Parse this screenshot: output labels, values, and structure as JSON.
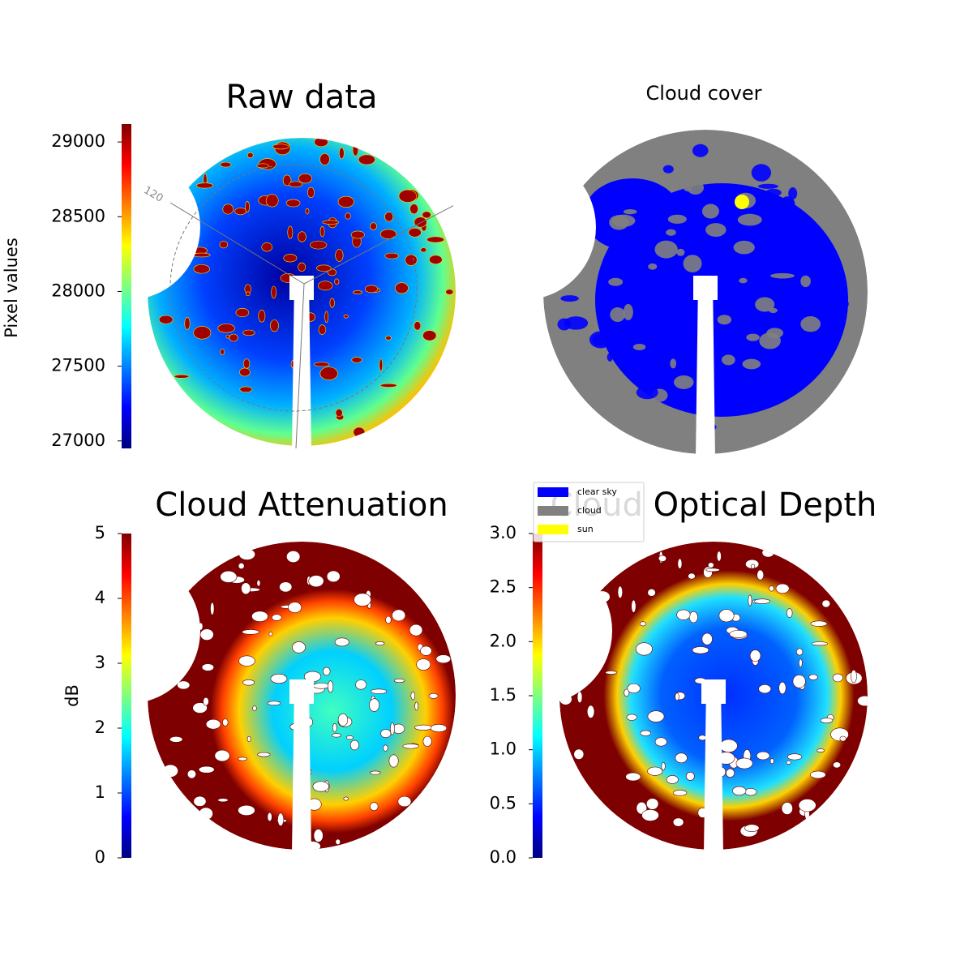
{
  "chart_data": [
    {
      "type": "colorbar-image",
      "title": "Raw data",
      "ylabel": "Pixel values",
      "colormap": "jet",
      "ylim": [
        26950,
        29120
      ],
      "yticks": [
        27000,
        27500,
        28000,
        28500,
        29000
      ],
      "annotations": [
        "120"
      ]
    },
    {
      "type": "categorical-image",
      "title": "Cloud cover",
      "legend": [
        {
          "name": "clear sky",
          "color": "#0000ff"
        },
        {
          "name": "cloud",
          "color": "#808080"
        },
        {
          "name": "sun",
          "color": "#ffff00"
        }
      ]
    },
    {
      "type": "colorbar-image",
      "title": "Cloud Attenuation",
      "ylabel": "dB",
      "colormap": "jet",
      "ylim": [
        0,
        5
      ],
      "yticks": [
        0,
        1,
        2,
        3,
        4,
        5
      ]
    },
    {
      "type": "colorbar-image",
      "title": "Cloud Optical Depth",
      "colormap": "jet",
      "ylim": [
        0,
        3
      ],
      "yticks": [
        {
          "value": 0,
          "label": "0.0"
        },
        {
          "value": 0.5,
          "label": "0.5"
        },
        {
          "value": 1,
          "label": "1.0"
        },
        {
          "value": 1.5,
          "label": "1.5"
        },
        {
          "value": 2,
          "label": "2.0"
        },
        {
          "value": 2.5,
          "label": "2.5"
        },
        {
          "value": 3,
          "label": "3.0"
        }
      ]
    }
  ]
}
